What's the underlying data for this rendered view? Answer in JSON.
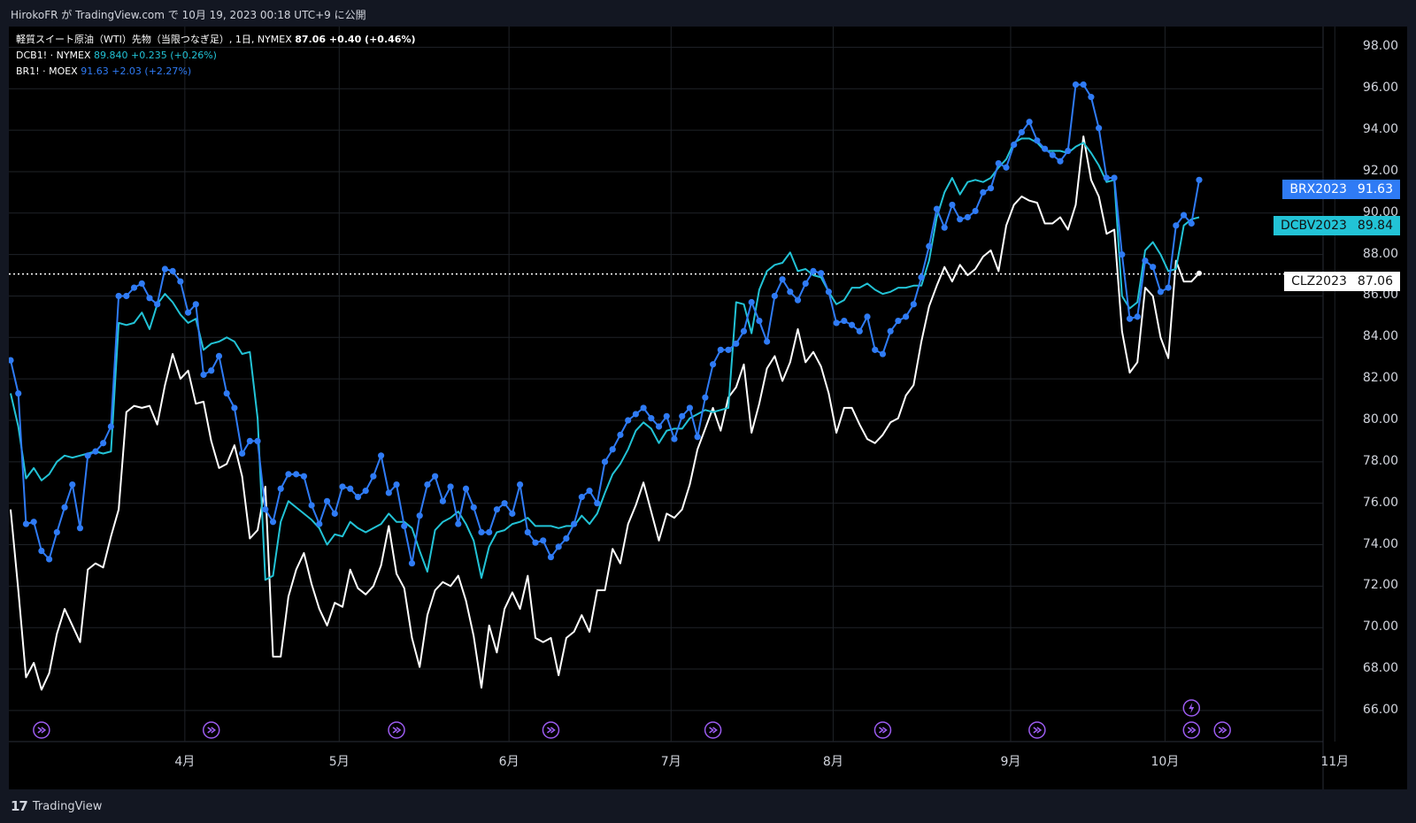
{
  "header": {
    "publish_text": "HirokoFR が TradingView.com で 10月 19, 2023 00:18 UTC+9 に公開"
  },
  "legend": {
    "main_label": "軽質スイート原油（WTI）先物（当限つなぎ足）, 1日, NYMEX",
    "main_value": "87.06  +0.40 (+0.46%)",
    "dcb_label": "DCB1! · NYMEX",
    "dcb_value": "89.840  +0.235 (+0.26%)",
    "br_label": "BR1! · MOEX",
    "br_value": "91.63  +2.03 (+2.27%)"
  },
  "price_tags": {
    "brx": {
      "symbol": "BRX2023",
      "price": "91.63"
    },
    "dcbv": {
      "symbol": "DCBV2023",
      "price": "89.84"
    },
    "clz": {
      "symbol": "CLZ2023",
      "price": "87.06"
    }
  },
  "footer": {
    "logo": "17",
    "brand": "TradingView"
  },
  "colors": {
    "wti": "#ffffff",
    "dcb": "#22c3d6",
    "br": "#2f7bf5",
    "background": "#000000",
    "grid": "#1f2328",
    "event_icon": "#9c5cf0"
  },
  "chart_data": {
    "type": "line",
    "y_ticks": [
      "98.00",
      "96.00",
      "94.00",
      "92.00",
      "90.00",
      "88.00",
      "86.00",
      "84.00",
      "82.00",
      "80.00",
      "78.00",
      "76.00",
      "74.00",
      "72.00",
      "70.00",
      "68.00",
      "66.00"
    ],
    "ylim": [
      64.5,
      99
    ],
    "x_ticks": [
      "4月",
      "5月",
      "6月",
      "7月",
      "8月",
      "9月",
      "10月",
      "11月"
    ],
    "current_price_line": 87.06,
    "event_icon_count": 9,
    "series": [
      {
        "name": "BR1! · MOEX",
        "key": "br",
        "markers": true,
        "values": [
          82.9,
          81.3,
          75.0,
          75.1,
          73.7,
          73.3,
          74.6,
          75.8,
          76.9,
          74.8,
          78.3,
          78.5,
          78.9,
          79.7,
          86.0,
          86.0,
          86.4,
          86.6,
          85.9,
          85.6,
          87.3,
          87.2,
          86.7,
          85.2,
          85.6,
          82.2,
          82.4,
          83.1,
          81.3,
          80.6,
          78.4,
          79.0,
          79.0,
          75.7,
          75.1,
          76.7,
          77.4,
          77.4,
          77.3,
          75.9,
          75.0,
          76.1,
          75.5,
          76.8,
          76.7,
          76.3,
          76.6,
          77.3,
          78.3,
          76.5,
          76.9,
          74.9,
          73.1,
          75.4,
          76.9,
          77.3,
          76.1,
          76.8,
          75.0,
          76.7,
          75.8,
          74.6,
          74.6,
          75.7,
          76.0,
          75.5,
          76.9,
          74.6,
          74.1,
          74.2,
          73.4,
          73.9,
          74.3,
          75.0,
          76.3,
          76.6,
          76.0,
          78.0,
          78.6,
          79.3,
          80.0,
          80.3,
          80.6,
          80.1,
          79.7,
          80.2,
          79.1,
          80.2,
          80.6,
          79.2,
          81.1,
          82.7,
          83.4,
          83.4,
          83.7,
          84.3,
          85.7,
          84.8,
          83.8,
          86.0,
          86.8,
          86.2,
          85.8,
          86.6,
          87.2,
          87.1,
          86.2,
          84.7,
          84.8,
          84.6,
          84.3,
          85.0,
          83.4,
          83.2,
          84.3,
          84.8,
          85.0,
          85.6,
          86.9,
          88.4,
          90.2,
          89.3,
          90.4,
          89.7,
          89.8,
          90.1,
          91.0,
          91.2,
          92.4,
          92.2,
          93.3,
          93.9,
          94.4,
          93.5,
          93.1,
          92.8,
          92.5,
          93.0,
          96.2,
          96.2,
          95.6,
          94.1,
          91.7,
          91.7,
          88.0,
          84.9,
          85.0,
          87.7,
          87.4,
          86.2,
          86.4,
          89.4,
          89.9,
          89.5,
          91.6
        ]
      },
      {
        "name": "DCB1! · NYMEX",
        "key": "dcb",
        "markers": false,
        "values": [
          81.3,
          79.7,
          77.2,
          77.7,
          77.1,
          77.4,
          78.0,
          78.3,
          78.2,
          78.3,
          78.4,
          78.5,
          78.4,
          78.5,
          84.7,
          84.6,
          84.7,
          85.2,
          84.4,
          85.6,
          86.1,
          85.7,
          85.1,
          84.7,
          84.9,
          83.4,
          83.7,
          83.8,
          84.0,
          83.8,
          83.2,
          83.3,
          80.1,
          72.3,
          72.5,
          75.1,
          76.1,
          75.8,
          75.5,
          75.2,
          74.8,
          74.0,
          74.5,
          74.4,
          75.1,
          74.8,
          74.6,
          74.8,
          75.0,
          75.5,
          75.1,
          75.1,
          74.8,
          73.7,
          72.7,
          74.7,
          75.1,
          75.3,
          75.6,
          75.0,
          74.2,
          72.4,
          73.9,
          74.6,
          74.7,
          75.0,
          75.1,
          75.3,
          74.9,
          74.9,
          74.9,
          74.8,
          74.9,
          74.9,
          75.4,
          75.0,
          75.5,
          76.5,
          77.4,
          77.9,
          78.6,
          79.5,
          79.9,
          79.6,
          78.9,
          79.5,
          79.6,
          79.6,
          80.1,
          80.3,
          80.5,
          80.4,
          80.5,
          80.6,
          85.7,
          85.6,
          84.2,
          86.3,
          87.2,
          87.5,
          87.6,
          88.1,
          87.2,
          87.3,
          87.0,
          86.9,
          86.2,
          85.6,
          85.8,
          86.4,
          86.4,
          86.6,
          86.3,
          86.1,
          86.2,
          86.4,
          86.4,
          86.5,
          86.5,
          87.7,
          89.8,
          91.0,
          91.7,
          90.9,
          91.5,
          91.6,
          91.5,
          91.7,
          92.2,
          92.6,
          93.4,
          93.6,
          93.6,
          93.4,
          93.0,
          93.0,
          93.0,
          92.9,
          93.2,
          93.4,
          92.9,
          92.3,
          91.5,
          91.6,
          86.0,
          85.4,
          85.7,
          88.2,
          88.6,
          88.0,
          87.2,
          87.3,
          89.4,
          89.7,
          89.8
        ]
      },
      {
        "name": "軽質スイート原油（WTI）先物",
        "key": "wti",
        "markers": false,
        "values": [
          75.7,
          71.8,
          67.6,
          68.3,
          67.0,
          67.8,
          69.7,
          70.9,
          70.1,
          69.3,
          72.8,
          73.1,
          72.9,
          74.4,
          75.7,
          80.4,
          80.7,
          80.6,
          80.7,
          79.8,
          81.7,
          83.2,
          82.0,
          82.4,
          80.8,
          80.9,
          79.0,
          77.7,
          77.9,
          78.8,
          77.3,
          74.3,
          74.7,
          76.8,
          68.6,
          68.6,
          71.5,
          72.8,
          73.6,
          72.1,
          70.9,
          70.1,
          71.2,
          71.0,
          72.8,
          71.9,
          71.6,
          72.0,
          73.0,
          74.9,
          72.6,
          71.9,
          69.5,
          68.1,
          70.6,
          71.8,
          72.2,
          72.0,
          72.5,
          71.3,
          69.6,
          67.1,
          70.1,
          68.8,
          70.9,
          71.7,
          70.9,
          72.5,
          69.5,
          69.3,
          69.5,
          67.7,
          69.5,
          69.8,
          70.6,
          69.8,
          71.8,
          71.8,
          73.8,
          73.1,
          75.0,
          75.9,
          77.0,
          75.6,
          74.2,
          75.5,
          75.3,
          75.7,
          76.9,
          78.6,
          79.6,
          80.6,
          79.5,
          81.1,
          81.6,
          82.7,
          79.4,
          80.8,
          82.5,
          83.1,
          81.9,
          82.8,
          84.4,
          82.8,
          83.3,
          82.6,
          81.3,
          79.4,
          80.6,
          80.6,
          79.8,
          79.1,
          78.9,
          79.3,
          79.9,
          80.1,
          81.2,
          81.7,
          83.8,
          85.5,
          86.5,
          87.4,
          86.7,
          87.5,
          87.0,
          87.3,
          87.9,
          88.2,
          87.2,
          89.4,
          90.4,
          90.8,
          90.6,
          90.5,
          89.5,
          89.5,
          89.8,
          89.2,
          90.4,
          93.7,
          91.6,
          90.8,
          89.0,
          89.2,
          84.3,
          82.3,
          82.8,
          86.4,
          86.0,
          84.0,
          83.0,
          87.7,
          86.7,
          86.7,
          87.1
        ]
      }
    ]
  }
}
